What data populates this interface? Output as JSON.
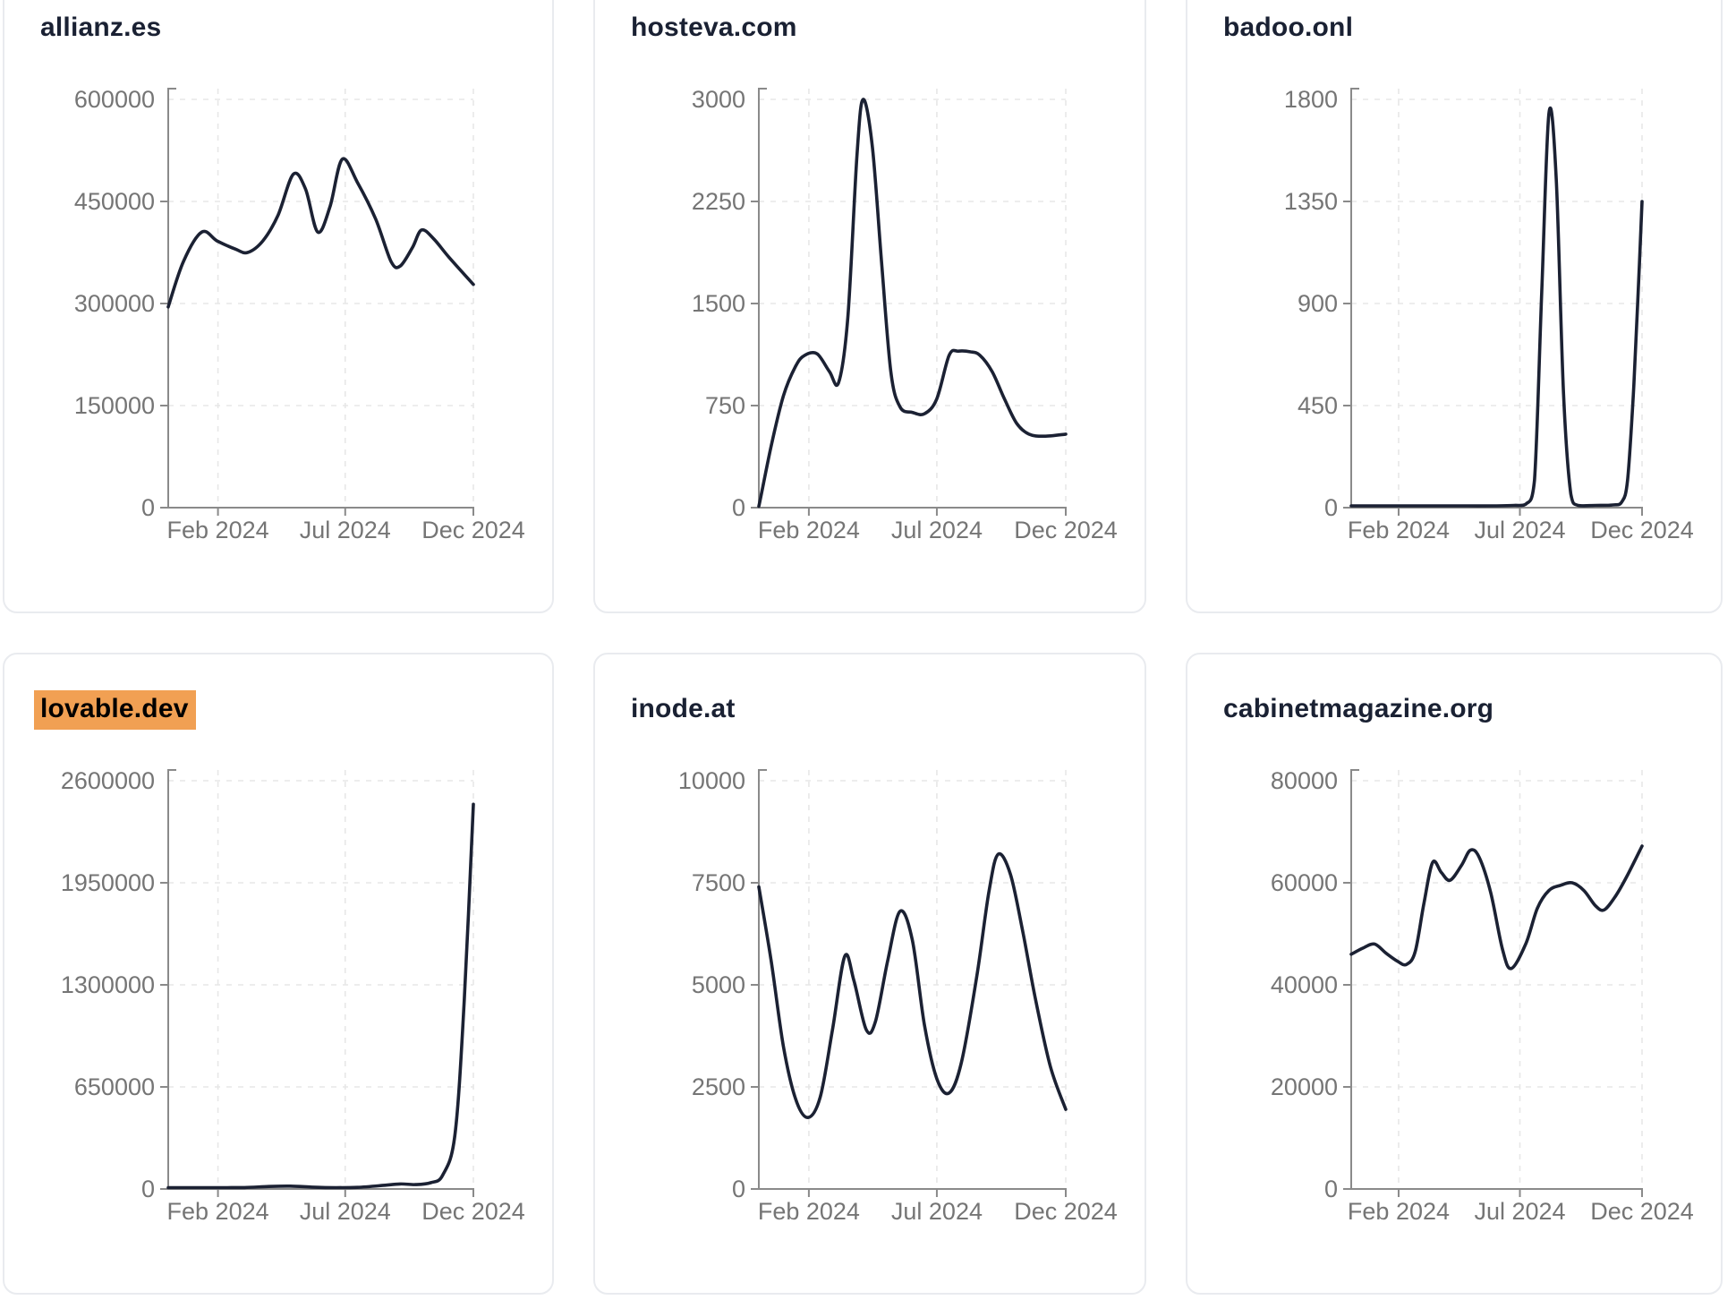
{
  "page": {
    "background": "#ffffff",
    "colors": {
      "line": "#1b2133",
      "title": "#1a2133",
      "tick_label": "#757575",
      "axis": "#8a8a8a",
      "grid": "#e7e7e7",
      "card_border": "#e9ebef",
      "card_bg": "#ffffff",
      "highlight_bg": "#f1a053",
      "highlight_text": "#000000"
    }
  },
  "x_axis": {
    "tick_labels": [
      "Feb 2024",
      "Jul 2024",
      "Dec 2024"
    ],
    "tick_positions": [
      0.163,
      0.58,
      1.0
    ]
  },
  "chart_data": [
    {
      "type": "line",
      "title": "allianz.es",
      "highlighted": false,
      "x_tick_labels": [
        "Feb 2024",
        "Jul 2024",
        "Dec 2024"
      ],
      "y_ticks": [
        0,
        150000,
        300000,
        450000,
        600000
      ],
      "ylim": [
        0,
        600000
      ],
      "grid": true,
      "points": [
        [
          0,
          295000
        ],
        [
          0.05,
          362000
        ],
        [
          0.11,
          405000
        ],
        [
          0.16,
          392000
        ],
        [
          0.22,
          380000
        ],
        [
          0.26,
          375000
        ],
        [
          0.31,
          392000
        ],
        [
          0.36,
          430000
        ],
        [
          0.41,
          490000
        ],
        [
          0.45,
          468000
        ],
        [
          0.49,
          405000
        ],
        [
          0.53,
          442000
        ],
        [
          0.57,
          512000
        ],
        [
          0.62,
          478000
        ],
        [
          0.68,
          424000
        ],
        [
          0.73,
          362000
        ],
        [
          0.76,
          355000
        ],
        [
          0.8,
          382000
        ],
        [
          0.83,
          408000
        ],
        [
          0.87,
          395000
        ],
        [
          0.92,
          368000
        ],
        [
          1,
          328000
        ]
      ]
    },
    {
      "type": "line",
      "title": "hosteva.com",
      "highlighted": false,
      "x_tick_labels": [
        "Feb 2024",
        "Jul 2024",
        "Dec 2024"
      ],
      "y_ticks": [
        0,
        750,
        1500,
        2250,
        3000
      ],
      "ylim": [
        0,
        3000
      ],
      "grid": true,
      "points": [
        [
          0,
          0
        ],
        [
          0.04,
          450
        ],
        [
          0.08,
          820
        ],
        [
          0.12,
          1040
        ],
        [
          0.15,
          1120
        ],
        [
          0.19,
          1130
        ],
        [
          0.23,
          1000
        ],
        [
          0.26,
          920
        ],
        [
          0.29,
          1400
        ],
        [
          0.32,
          2600
        ],
        [
          0.34,
          3000
        ],
        [
          0.37,
          2650
        ],
        [
          0.4,
          1800
        ],
        [
          0.43,
          1000
        ],
        [
          0.46,
          740
        ],
        [
          0.5,
          700
        ],
        [
          0.54,
          690
        ],
        [
          0.58,
          800
        ],
        [
          0.62,
          1120
        ],
        [
          0.65,
          1150
        ],
        [
          0.69,
          1145
        ],
        [
          0.72,
          1120
        ],
        [
          0.76,
          1000
        ],
        [
          0.8,
          800
        ],
        [
          0.84,
          620
        ],
        [
          0.88,
          540
        ],
        [
          0.93,
          525
        ],
        [
          1,
          540
        ]
      ]
    },
    {
      "type": "line",
      "title": "badoo.onl",
      "highlighted": false,
      "x_tick_labels": [
        "Feb 2024",
        "Jul 2024",
        "Dec 2024"
      ],
      "y_ticks": [
        0,
        450,
        900,
        1350,
        1800
      ],
      "ylim": [
        0,
        1800
      ],
      "grid": true,
      "points": [
        [
          0,
          8
        ],
        [
          0.1,
          8
        ],
        [
          0.2,
          8
        ],
        [
          0.3,
          8
        ],
        [
          0.4,
          8
        ],
        [
          0.5,
          8
        ],
        [
          0.56,
          10
        ],
        [
          0.6,
          15
        ],
        [
          0.63,
          120
        ],
        [
          0.655,
          950
        ],
        [
          0.68,
          1740
        ],
        [
          0.705,
          1450
        ],
        [
          0.73,
          500
        ],
        [
          0.755,
          60
        ],
        [
          0.78,
          10
        ],
        [
          0.84,
          10
        ],
        [
          0.9,
          12
        ],
        [
          0.93,
          25
        ],
        [
          0.95,
          120
        ],
        [
          0.97,
          500
        ],
        [
          0.985,
          900
        ],
        [
          1,
          1350
        ]
      ]
    },
    {
      "type": "line",
      "title": "lovable.dev",
      "highlighted": true,
      "x_tick_labels": [
        "Feb 2024",
        "Jul 2024",
        "Dec 2024"
      ],
      "y_ticks": [
        0,
        650000,
        1300000,
        1950000,
        2600000
      ],
      "ylim": [
        0,
        2600000
      ],
      "grid": true,
      "points": [
        [
          0,
          4000
        ],
        [
          0.08,
          4000
        ],
        [
          0.16,
          5000
        ],
        [
          0.25,
          9000
        ],
        [
          0.33,
          16000
        ],
        [
          0.4,
          18000
        ],
        [
          0.47,
          12000
        ],
        [
          0.55,
          6000
        ],
        [
          0.62,
          10000
        ],
        [
          0.7,
          22000
        ],
        [
          0.76,
          32000
        ],
        [
          0.81,
          28000
        ],
        [
          0.86,
          40000
        ],
        [
          0.9,
          90000
        ],
        [
          0.94,
          350000
        ],
        [
          0.97,
          1200000
        ],
        [
          1,
          2450000
        ]
      ]
    },
    {
      "type": "line",
      "title": "inode.at",
      "highlighted": false,
      "x_tick_labels": [
        "Feb 2024",
        "Jul 2024",
        "Dec 2024"
      ],
      "y_ticks": [
        0,
        2500,
        5000,
        7500,
        10000
      ],
      "ylim": [
        0,
        10000
      ],
      "grid": true,
      "points": [
        [
          0,
          7400
        ],
        [
          0.04,
          5600
        ],
        [
          0.08,
          3500
        ],
        [
          0.12,
          2200
        ],
        [
          0.16,
          1750
        ],
        [
          0.2,
          2250
        ],
        [
          0.24,
          3900
        ],
        [
          0.28,
          5700
        ],
        [
          0.31,
          5100
        ],
        [
          0.35,
          3900
        ],
        [
          0.38,
          4100
        ],
        [
          0.42,
          5600
        ],
        [
          0.46,
          6800
        ],
        [
          0.5,
          6100
        ],
        [
          0.54,
          4000
        ],
        [
          0.58,
          2700
        ],
        [
          0.62,
          2350
        ],
        [
          0.66,
          3100
        ],
        [
          0.71,
          5200
        ],
        [
          0.75,
          7300
        ],
        [
          0.78,
          8200
        ],
        [
          0.82,
          7700
        ],
        [
          0.86,
          6300
        ],
        [
          0.9,
          4700
        ],
        [
          0.95,
          3000
        ],
        [
          1,
          1950
        ]
      ]
    },
    {
      "type": "line",
      "title": "cabinetmagazine.org",
      "highlighted": false,
      "x_tick_labels": [
        "Feb 2024",
        "Jul 2024",
        "Dec 2024"
      ],
      "y_ticks": [
        0,
        20000,
        40000,
        60000,
        80000
      ],
      "ylim": [
        0,
        80000
      ],
      "grid": true,
      "points": [
        [
          0,
          46000
        ],
        [
          0.04,
          47200
        ],
        [
          0.08,
          48000
        ],
        [
          0.12,
          46200
        ],
        [
          0.16,
          44600
        ],
        [
          0.19,
          44000
        ],
        [
          0.22,
          46500
        ],
        [
          0.25,
          56000
        ],
        [
          0.28,
          64000
        ],
        [
          0.31,
          62000
        ],
        [
          0.34,
          60500
        ],
        [
          0.38,
          63500
        ],
        [
          0.41,
          66400
        ],
        [
          0.44,
          65000
        ],
        [
          0.48,
          58000
        ],
        [
          0.52,
          47000
        ],
        [
          0.55,
          43200
        ],
        [
          0.6,
          48000
        ],
        [
          0.64,
          55000
        ],
        [
          0.68,
          58500
        ],
        [
          0.72,
          59500
        ],
        [
          0.76,
          60000
        ],
        [
          0.8,
          58500
        ],
        [
          0.84,
          55500
        ],
        [
          0.87,
          54700
        ],
        [
          0.91,
          57500
        ],
        [
          0.95,
          61500
        ],
        [
          1,
          67200
        ]
      ]
    }
  ]
}
